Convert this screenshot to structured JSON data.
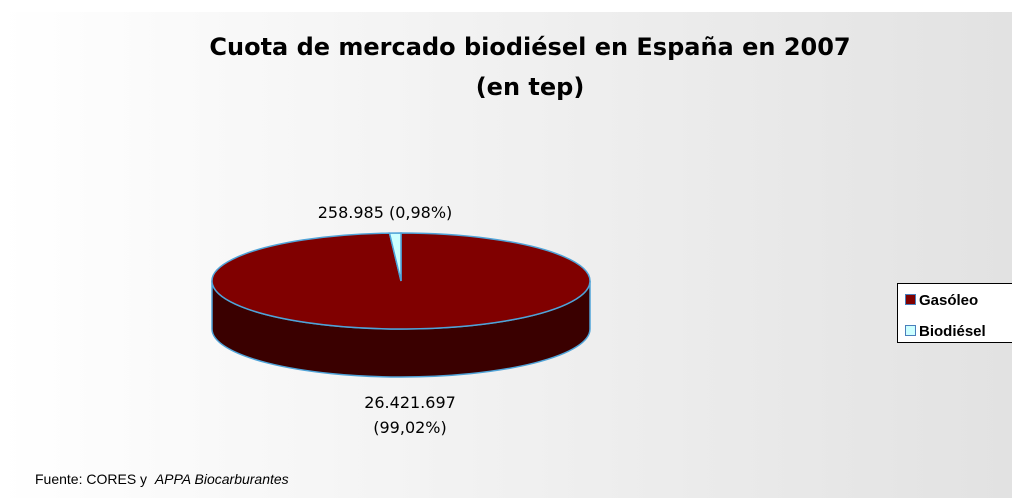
{
  "chart_data": {
    "type": "pie",
    "title": [
      "Cuota de mercado biodiésel en España en 2007",
      "(en tep)"
    ],
    "categories": [
      "Gasóleo",
      "Biodiésel"
    ],
    "values": [
      26421697,
      258985
    ],
    "value_labels": [
      "26.421.697 (99,02%)",
      "258.985 (0,98%)"
    ],
    "colors": [
      "#800000",
      "#ccffff"
    ],
    "legend": "right",
    "source": "Fuente: CORES y",
    "source_italic": "APPA Biocarburantes"
  }
}
